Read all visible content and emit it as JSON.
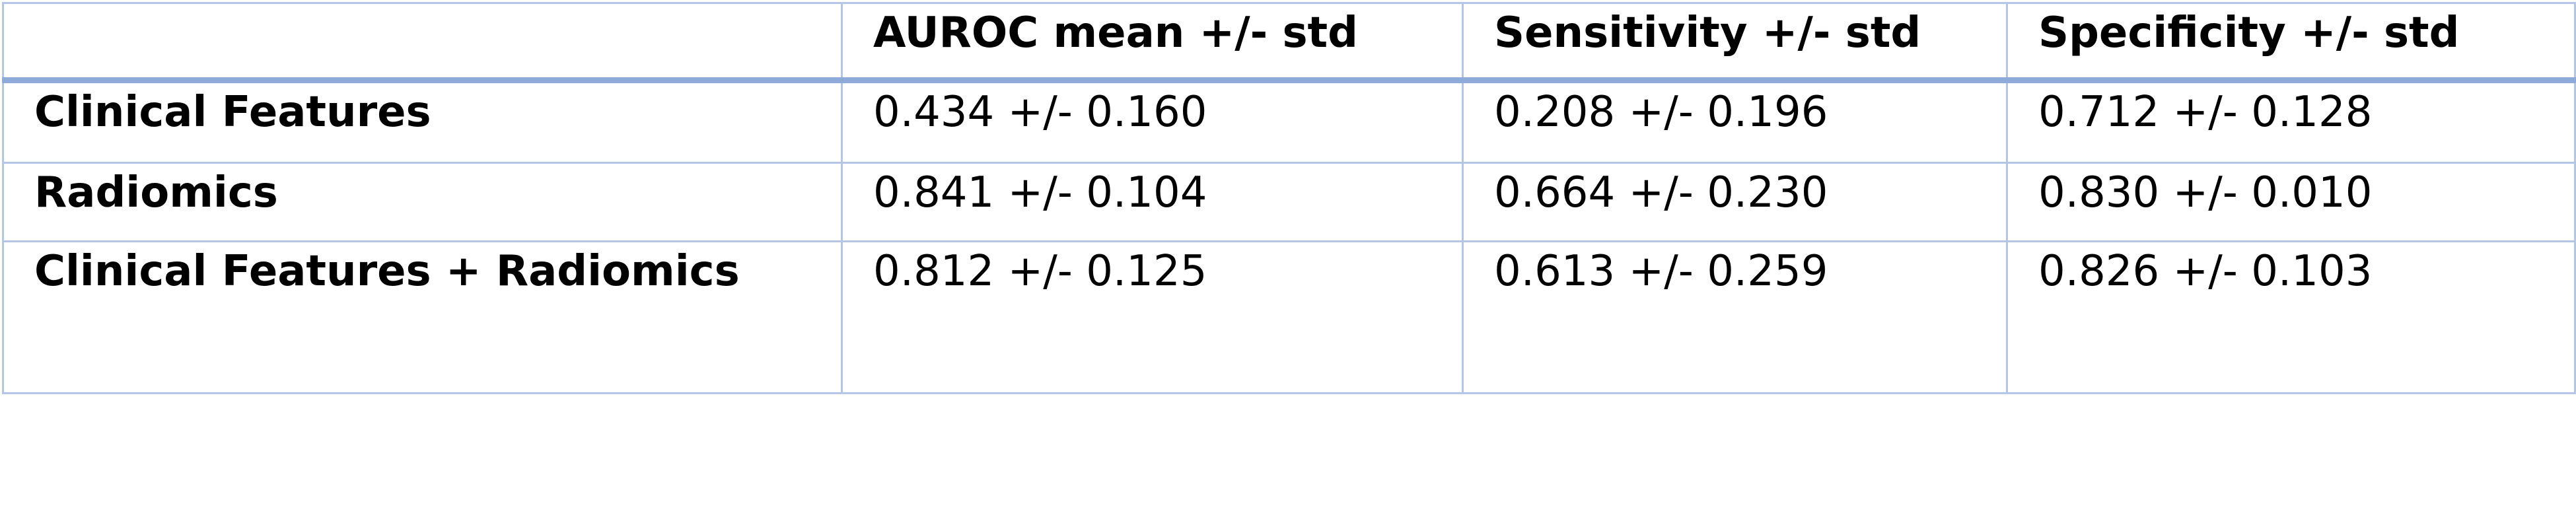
{
  "table": {
    "columns": [
      "AUROC mean +/- std",
      "Sensitivity +/- std",
      "Specificity +/- std"
    ],
    "rows": [
      [
        "Clinical Features",
        "0.434 +/- 0.160",
        "0.208 +/- 0.196",
        "0.712 +/- 0.128"
      ],
      [
        "Radiomics",
        "0.841 +/- 0.104",
        "0.664 +/- 0.230",
        "0.830 +/- 0.010"
      ],
      [
        "Clinical Features + Radiomics",
        "0.812 +/- 0.125",
        "0.613 +/- 0.259",
        "0.826 +/- 0.103"
      ]
    ]
  }
}
